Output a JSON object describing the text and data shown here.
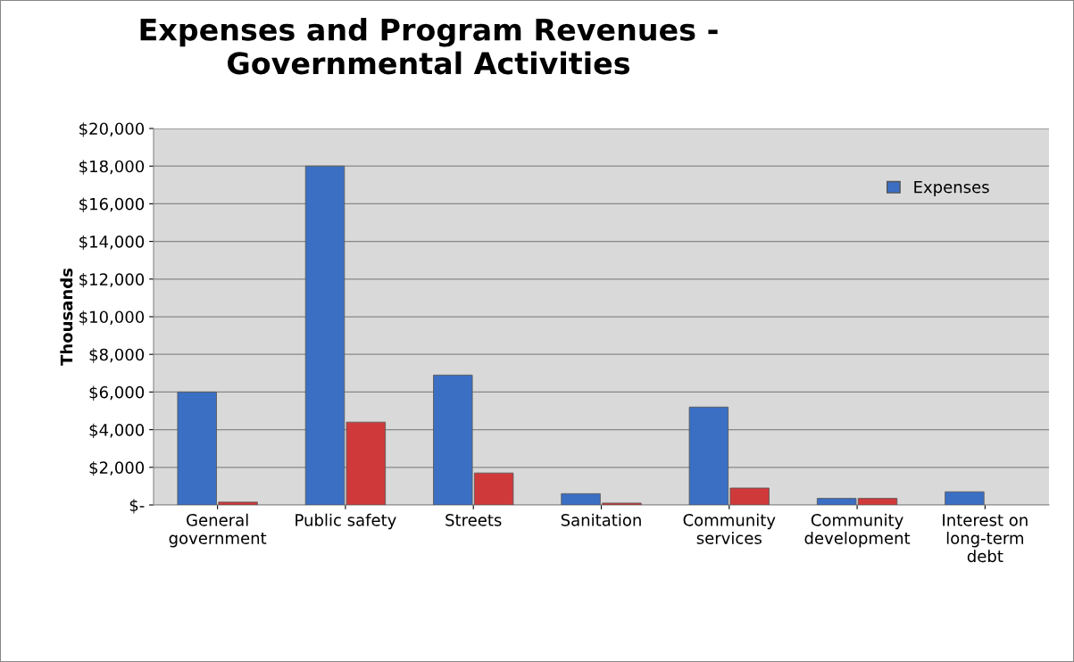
{
  "chart_data": {
    "type": "bar",
    "title": "Expenses and Program Revenues -\nGovernmental Activities",
    "ylabel": "Thousands",
    "categories": [
      "General government",
      "Public safety",
      "Streets",
      "Sanitation",
      "Community services",
      "Community development",
      "Interest on long-term debt"
    ],
    "series": [
      {
        "name": "Expenses",
        "color": "#3a6fc4",
        "values": [
          6000,
          18000,
          6900,
          600,
          5200,
          350,
          700
        ]
      },
      {
        "color": "#d0393a",
        "values": [
          150,
          4400,
          1700,
          100,
          900,
          350,
          null
        ]
      }
    ],
    "ylim": [
      0,
      20000
    ],
    "yticks": [
      {
        "value": 0,
        "label": "$-"
      },
      {
        "value": 2000,
        "label": "$2,000"
      },
      {
        "value": 4000,
        "label": "$4,000"
      },
      {
        "value": 6000,
        "label": "$6,000"
      },
      {
        "value": 8000,
        "label": "$8,000"
      },
      {
        "value": 10000,
        "label": "$10,000"
      },
      {
        "value": 12000,
        "label": "$12,000"
      },
      {
        "value": 14000,
        "label": "$14,000"
      },
      {
        "value": 16000,
        "label": "$16,000"
      },
      {
        "value": 18000,
        "label": "$18,000"
      },
      {
        "value": 20000,
        "label": "$20,000"
      }
    ],
    "grid": "y",
    "legend": "top right"
  }
}
